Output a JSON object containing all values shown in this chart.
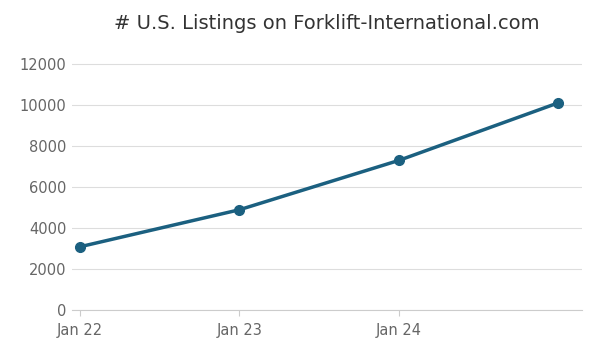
{
  "title": "# U.S. Listings on Forklift-International.com",
  "x_values": [
    0,
    1,
    2,
    3
  ],
  "y_values": [
    3100,
    4900,
    7300,
    10100
  ],
  "x_tick_positions": [
    0,
    1,
    2
  ],
  "x_tick_labels": [
    "Jan 22",
    "Jan 23",
    "Jan 24"
  ],
  "ylim": [
    0,
    13000
  ],
  "yticks": [
    0,
    2000,
    4000,
    6000,
    8000,
    10000,
    12000
  ],
  "xlim": [
    -0.05,
    3.15
  ],
  "line_color": "#1b6080",
  "marker_color": "#1b6080",
  "background_color": "#ffffff",
  "plot_bg_color": "#ffffff",
  "grid_color": "#dddddd",
  "title_fontsize": 14,
  "tick_fontsize": 10.5,
  "line_width": 2.5,
  "marker_size": 7
}
